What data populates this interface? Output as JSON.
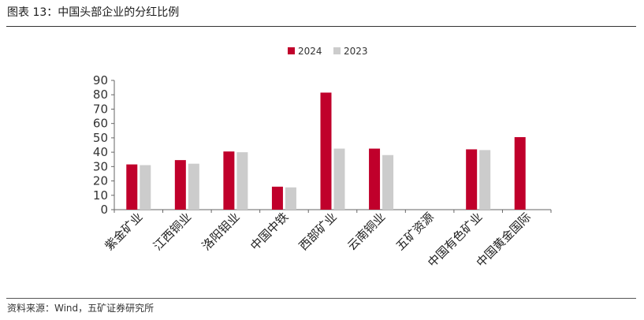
{
  "figure_title": "图表 13：中国头部企业的分红比例",
  "source_note": "资料来源：Wind，五矿证券研究所",
  "chart_data": {
    "type": "bar",
    "categories": [
      "紫金矿业",
      "江西铜业",
      "洛阳钼业",
      "中国中铁",
      "西部矿业",
      "云南铜业",
      "五矿资源",
      "中国有色矿业",
      "中国黄金国际"
    ],
    "series": [
      {
        "name": "2024",
        "color": "#c0002b",
        "values": [
          31.5,
          34.5,
          40.5,
          16,
          81.5,
          42.5,
          null,
          42,
          50.5
        ]
      },
      {
        "name": "2023",
        "color": "#cccccc",
        "values": [
          31,
          32,
          40,
          15.5,
          42.5,
          38,
          null,
          41.5,
          null
        ]
      }
    ],
    "ylim": [
      0,
      90
    ],
    "yticks": [
      0,
      10,
      20,
      30,
      40,
      50,
      60,
      70,
      80,
      90
    ],
    "legend_position": "top-center",
    "grid": false,
    "title": "",
    "xlabel": "",
    "ylabel": ""
  }
}
